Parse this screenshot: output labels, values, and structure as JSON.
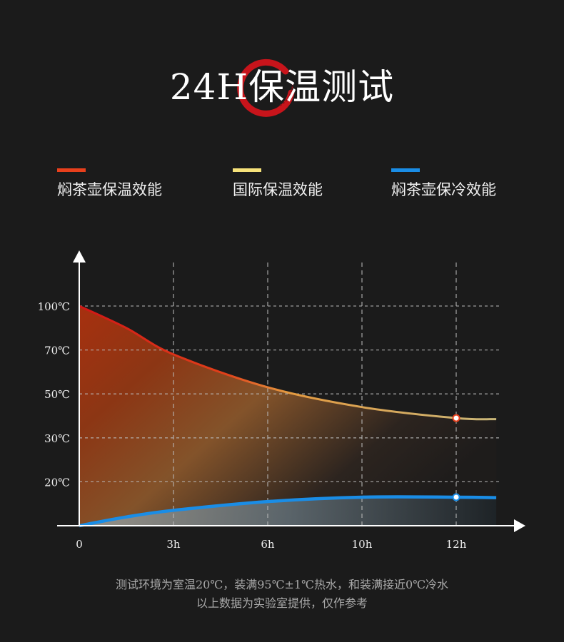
{
  "title": "24H保温测试",
  "chart_data": {
    "type": "area",
    "title": "24H保温测试",
    "xlabel": "",
    "ylabel": "",
    "x_ticks": [
      {
        "value": 0,
        "label": "0"
      },
      {
        "value": 3,
        "label": "3h"
      },
      {
        "value": 6,
        "label": "6h"
      },
      {
        "value": 10,
        "label": "10h"
      },
      {
        "value": 12,
        "label": "12h"
      }
    ],
    "y_ticks": [
      {
        "value": 20,
        "label": "20℃"
      },
      {
        "value": 30,
        "label": "30℃"
      },
      {
        "value": 50,
        "label": "50℃"
      },
      {
        "value": 70,
        "label": "70℃"
      },
      {
        "value": 100,
        "label": "100℃"
      }
    ],
    "grid": true,
    "legend_position": "top",
    "series": [
      {
        "name": "焖茶壶保温效能",
        "color": "#e8401c",
        "x": [
          0,
          1.5,
          3,
          6,
          10,
          12,
          12.85
        ],
        "y": [
          100,
          85,
          68,
          53,
          44,
          39,
          38.5
        ],
        "marker_at": 12
      },
      {
        "name": "国际保温效能",
        "color": "#f6e27a",
        "x": [],
        "y": []
      },
      {
        "name": "焖茶壶保冷效能",
        "color": "#1a8de6",
        "x": [
          0,
          1.5,
          3,
          6,
          10,
          12,
          12.85
        ],
        "y": [
          0,
          4,
          7,
          11,
          13,
          13,
          12.8
        ],
        "marker_at": 12
      }
    ]
  },
  "footer": {
    "line1": "测试环境为室温20℃，装满95℃±1℃热水，和装满接近0℃冷水",
    "line2": "以上数据为实验室提供，仅作参考"
  }
}
